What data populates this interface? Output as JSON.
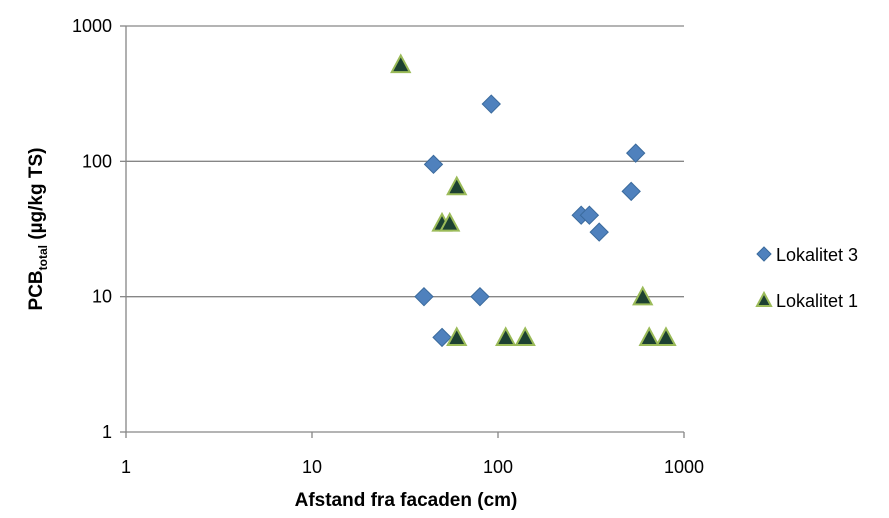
{
  "chart_data": {
    "type": "scatter",
    "title": "",
    "xlabel": "Afstand fra facaden (cm)",
    "ylabel": {
      "main": "PCB",
      "subscript": "total",
      "rest": " (µg/kg TS)"
    },
    "xscale": "log",
    "yscale": "log",
    "xlim": [
      1,
      1000
    ],
    "ylim": [
      1,
      1000
    ],
    "x_ticks": [
      1,
      10,
      100,
      1000
    ],
    "x_tick_labels": [
      "1",
      "10",
      "100",
      "1000"
    ],
    "y_ticks": [
      1,
      10,
      100,
      1000
    ],
    "y_tick_labels": [
      "1",
      "10",
      "100",
      "1000"
    ],
    "grid": "horizontal",
    "legend_position": "right",
    "series": [
      {
        "name": "Lokalitet 3",
        "marker": "diamond",
        "color": "#4F81BD",
        "points": [
          {
            "x": 40,
            "y": 10
          },
          {
            "x": 45,
            "y": 95
          },
          {
            "x": 50,
            "y": 5
          },
          {
            "x": 80,
            "y": 10
          },
          {
            "x": 92,
            "y": 265
          },
          {
            "x": 280,
            "y": 40
          },
          {
            "x": 310,
            "y": 40
          },
          {
            "x": 350,
            "y": 30
          },
          {
            "x": 520,
            "y": 60
          },
          {
            "x": 550,
            "y": 115
          }
        ]
      },
      {
        "name": "Lokalitet 1",
        "marker": "triangle",
        "color": "#1D4132",
        "stroke": "#9BBB59",
        "points": [
          {
            "x": 30,
            "y": 520
          },
          {
            "x": 50,
            "y": 35
          },
          {
            "x": 55,
            "y": 35
          },
          {
            "x": 60,
            "y": 65
          },
          {
            "x": 60,
            "y": 5
          },
          {
            "x": 110,
            "y": 5
          },
          {
            "x": 140,
            "y": 5
          },
          {
            "x": 600,
            "y": 10
          },
          {
            "x": 650,
            "y": 5
          },
          {
            "x": 800,
            "y": 5
          }
        ]
      }
    ]
  }
}
